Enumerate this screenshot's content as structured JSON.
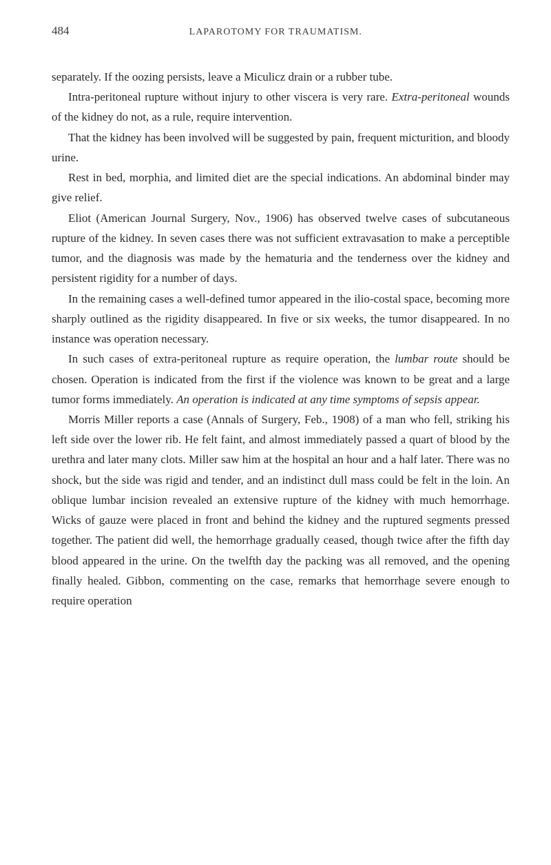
{
  "header": {
    "page_number": "484",
    "running_title": "LAPAROTOMY FOR TRAUMATISM."
  },
  "paragraphs": {
    "p1": "separately. If the oozing persists, leave a Miculicz drain or a rubber tube.",
    "p2_pre": "Intra-peritoneal rupture without injury to other viscera is very rare. ",
    "p2_italic": "Extra-peritoneal",
    "p2_post": " wounds of the kidney do not, as a rule, require intervention.",
    "p3": "That the kidney has been involved will be suggested by pain, frequent micturition, and bloody urine.",
    "p4": "Rest in bed, morphia, and limited diet are the special indications. An abdominal binder may give relief.",
    "p5": "Eliot (American Journal Surgery, Nov., 1906) has observed twelve cases of subcutaneous rupture of the kidney. In seven cases there was not sufficient extravasation to make a perceptible tumor, and the diagnosis was made by the hematuria and the tenderness over the kidney and persistent rigidity for a number of days.",
    "p6": "In the remaining cases a well-defined tumor appeared in the ilio-costal space, becoming more sharply outlined as the rigidity disappeared. In five or six weeks, the tumor disappeared. In no instance was operation necessary.",
    "p7_pre": "In such cases of extra-peritoneal rupture as require operation, the ",
    "p7_italic1": "lumbar route",
    "p7_mid": " should be chosen. Operation is indicated from the first if the violence was known to be great and a large tumor forms immediately. ",
    "p7_italic2": "An operation is indicated at any time symptoms of sepsis appear.",
    "p8": "Morris Miller reports a case (Annals of Surgery, Feb., 1908) of a man who fell, striking his left side over the lower rib. He felt faint, and almost immediately passed a quart of blood by the urethra and later many clots. Miller saw him at the hospital an hour and a half later. There was no shock, but the side was rigid and tender, and an indistinct dull mass could be felt in the loin. An oblique lumbar incision revealed an extensive rupture of the kidney with much hemorrhage. Wicks of gauze were placed in front and behind the kidney and the ruptured segments pressed together. The patient did well, the hemorrhage gradually ceased, though twice after the fifth day blood appeared in the urine. On the twelfth day the packing was all removed, and the opening finally healed. Gibbon, commenting on the case, remarks that hemorrhage severe enough to require operation"
  },
  "styling": {
    "background_color": "#ffffff",
    "text_color": "#2a2a2a",
    "header_color": "#3a3a3a",
    "body_font_size": 17,
    "header_font_size": 14,
    "page_number_font_size": 17,
    "line_height": 1.72,
    "text_indent": 24
  }
}
